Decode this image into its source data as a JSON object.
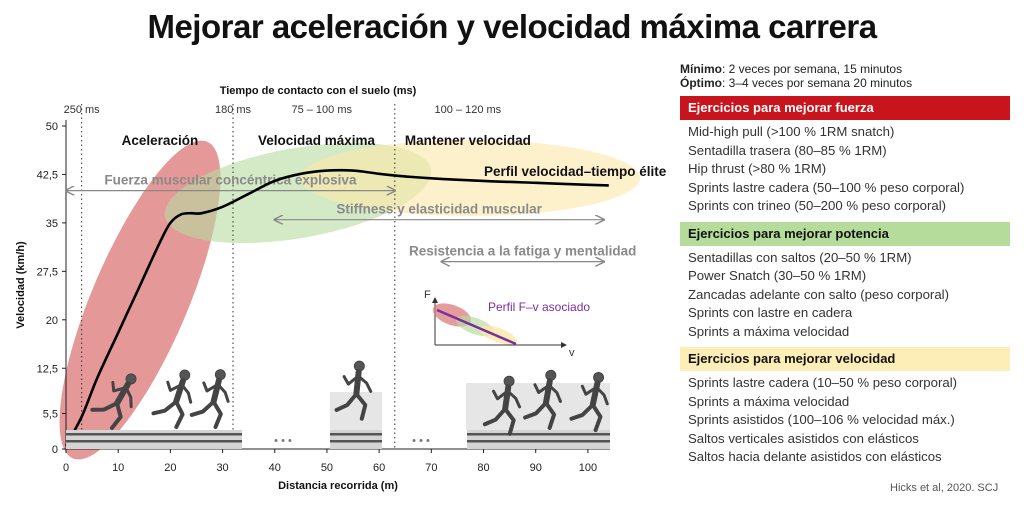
{
  "title": "Mejorar aceleración y velocidad máxima carrera",
  "chart_data": {
    "type": "line",
    "title": "Mejorar aceleración y velocidad máxima carrera",
    "xlabel": "Distancia recorrida (m)",
    "ylabel": "Velocidad (km/h)",
    "xlim": [
      0,
      105
    ],
    "ylim": [
      0,
      50
    ],
    "x_ticks": [
      "0",
      "10",
      "20",
      "30",
      "40",
      "50",
      "60",
      "70",
      "80",
      "90",
      "100"
    ],
    "y_ticks": [
      "0",
      "5,5",
      "12,5",
      "20",
      "27,5",
      "35",
      "42,5",
      "50"
    ],
    "top_axis_label": "Tiempo de contacto con el suelo (ms)",
    "contact_times": [
      {
        "label": "250 ms",
        "x": 3
      },
      {
        "label": "180 ms",
        "x": 32
      },
      {
        "label": "75 – 100 ms",
        "x": 49
      },
      {
        "label": "100 – 120 ms",
        "x": 77
      }
    ],
    "phases": [
      {
        "label": "Aceleración",
        "x": 18
      },
      {
        "label": "Velocidad máxima",
        "x": 48
      },
      {
        "label": "Mantener velocidad",
        "x": 77
      }
    ],
    "series": [
      {
        "name": "Perfil velocidad–tiempo élite",
        "x": [
          0,
          3,
          6,
          10,
          14,
          18,
          20,
          22,
          24,
          26,
          30,
          35,
          40,
          45,
          50,
          55,
          60,
          65,
          70,
          80,
          90,
          100,
          104
        ],
        "y": [
          0.5,
          5,
          11,
          18,
          25,
          32,
          35,
          36.3,
          36.5,
          36.5,
          37.5,
          39.5,
          41.5,
          42.6,
          43.1,
          43.1,
          42.6,
          42.2,
          41.9,
          41.5,
          41.2,
          40.9,
          40.8
        ]
      }
    ],
    "arrows": [
      {
        "label": "Fuerza muscular concéntrica explosiva",
        "x_from": 0,
        "x_to": 63,
        "y": 40
      },
      {
        "label": "Stiffness y elasticidad muscular",
        "x_from": 40,
        "x_to": 103,
        "y": 35.5
      },
      {
        "label": "Resistencia a la fatiga y mentalidad",
        "x_from": 72,
        "x_to": 103,
        "y": 29
      }
    ],
    "dotted_lines_x": [
      3,
      32,
      63
    ],
    "inset": {
      "label": "Perfil F–v asociado",
      "f_axis": "F",
      "v_axis": "v"
    },
    "colors": {
      "fuerza": "#dc7b7b",
      "potencia": "#a8d58f",
      "velocidad": "#fbe7a8",
      "curve": "#000000",
      "inset_line": "#7a2fa0"
    }
  },
  "side": {
    "min_label": "Mínimo",
    "min_text": ": 2 veces por semana, 15 minutos",
    "opt_label": "Óptimo",
    "opt_text": ": 3–4 veces por semana 20 minutos",
    "sections": [
      {
        "header": "Ejercicios para mejorar fuerza",
        "bg": "#c8151d",
        "fg": "#ffffff",
        "items": [
          "Mid-high pull (>100 % 1RM snatch)",
          "Sentadilla trasera (80–85 % 1RM)",
          "Hip thrust (>80 % 1RM)",
          "Sprints lastre cadera (50–100 % peso corporal)",
          "Sprints con trineo (50–200 % peso corporal)"
        ]
      },
      {
        "header": "Ejercicios para mejorar potencia",
        "bg": "#b5dc9a",
        "fg": "#111111",
        "items": [
          "Sentadillas con saltos (20–50 % 1RM)",
          "Power Snatch (30–50 % 1RM)",
          "Zancadas adelante con salto (peso corporal)",
          "Sprints con lastre en cadera",
          "Sprints a máxima velocidad"
        ]
      },
      {
        "header": "Ejercicios para mejorar velocidad",
        "bg": "#fdeeb8",
        "fg": "#111111",
        "items": [
          "Sprints lastre cadera (10–50 % peso corporal)",
          "Sprints a máxima velocidad",
          "Sprints asistidos (100–106 % velocidad máx.)",
          "Saltos verticales asistidos con elásticos",
          "Saltos hacia delante asistidos con elásticos"
        ]
      }
    ]
  },
  "source": "Hicks et al, 2020. SCJ",
  "gap_marks": [
    "• • •",
    "• • •"
  ]
}
